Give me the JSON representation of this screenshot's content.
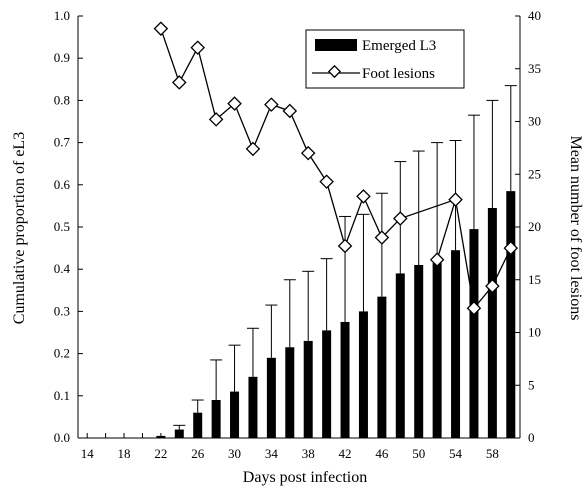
{
  "chart_data": {
    "type": "bar",
    "title": "",
    "xlabel": "Days post infection",
    "ylabel": "Cumulative proportion of eL3",
    "y2label": "Mean number of foot lesions",
    "xlim": [
      13,
      61
    ],
    "ylim": [
      0,
      1.0
    ],
    "y2lim": [
      0,
      40
    ],
    "x_ticks": [
      14,
      18,
      22,
      26,
      30,
      34,
      38,
      42,
      46,
      50,
      54,
      58
    ],
    "y_ticks": [
      "0.0",
      "0.1",
      "0.2",
      "0.3",
      "0.4",
      "0.5",
      "0.6",
      "0.7",
      "0.8",
      "0.9",
      "1.0"
    ],
    "y2_ticks": [
      "0",
      "5",
      "10",
      "15",
      "20",
      "25",
      "30",
      "35",
      "40"
    ],
    "legend_position": "top-right",
    "series": [
      {
        "name": "Emerged L3",
        "kind": "bar",
        "axis": "left",
        "x": [
          14,
          16,
          18,
          20,
          22,
          24,
          26,
          28,
          30,
          32,
          34,
          36,
          38,
          40,
          42,
          44,
          46,
          48,
          50,
          52,
          54,
          56,
          58,
          60
        ],
        "values": [
          0.0,
          0.0,
          0.0,
          0.0,
          0.005,
          0.02,
          0.06,
          0.09,
          0.11,
          0.145,
          0.19,
          0.215,
          0.23,
          0.255,
          0.275,
          0.3,
          0.335,
          0.39,
          0.41,
          0.415,
          0.445,
          0.495,
          0.545,
          0.585
        ],
        "error": [
          0.0,
          0.0,
          0.0,
          0.0,
          0.0,
          0.01,
          0.03,
          0.095,
          0.11,
          0.115,
          0.125,
          0.16,
          0.165,
          0.17,
          0.25,
          0.23,
          0.245,
          0.265,
          0.27,
          0.285,
          0.26,
          0.27,
          0.255,
          0.25
        ]
      },
      {
        "name": "Foot lesions",
        "kind": "line",
        "axis": "right",
        "x": [
          22,
          24,
          26,
          28,
          30,
          32,
          34,
          36,
          38,
          40,
          42,
          44,
          46,
          48,
          54,
          56,
          58,
          60
        ],
        "values": [
          38.8,
          33.7,
          37.0,
          30.2,
          31.7,
          27.4,
          31.6,
          31.0,
          27.0,
          24.3,
          18.2,
          22.9,
          19.0,
          20.8,
          22.6,
          12.3,
          14.4,
          18.0
        ]
      },
      {
        "name": "",
        "kind": "line",
        "axis": "right",
        "x": [
          52,
          54
        ],
        "values": [
          16.9,
          22.6
        ]
      }
    ],
    "colors": {
      "bar": "#000000",
      "line": "#000000",
      "marker_fill": "#ffffff"
    }
  }
}
